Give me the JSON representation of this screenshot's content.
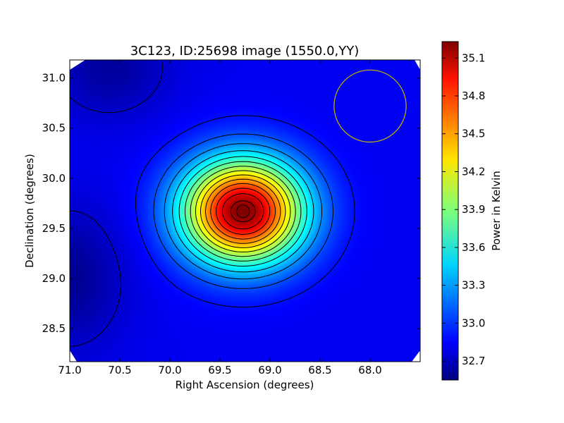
{
  "chart_data": {
    "type": "heatmap",
    "title": "3C123, ID:25698 image (1550.0,YY)",
    "xlabel": "Right Ascension (degrees)",
    "ylabel": "Declination (degrees)",
    "xlim": [
      71.0,
      67.5
    ],
    "ylim": [
      28.17,
      31.18
    ],
    "x_ticks": [
      {
        "value": 71.0,
        "label": "71.0"
      },
      {
        "value": 70.5,
        "label": "70.5"
      },
      {
        "value": 70.0,
        "label": "70.0"
      },
      {
        "value": 69.5,
        "label": "69.5"
      },
      {
        "value": 69.0,
        "label": "69.0"
      },
      {
        "value": 68.5,
        "label": "68.5"
      },
      {
        "value": 68.0,
        "label": "68.0"
      }
    ],
    "y_ticks": [
      {
        "value": 28.5,
        "label": "28.5"
      },
      {
        "value": 29.0,
        "label": "29.0"
      },
      {
        "value": 29.5,
        "label": "29.5"
      },
      {
        "value": 30.0,
        "label": "30.0"
      },
      {
        "value": 30.5,
        "label": "30.5"
      },
      {
        "value": 31.0,
        "label": "31.0"
      }
    ],
    "colorbar": {
      "label": "Power in Kelvin",
      "colormap": "jet",
      "range": [
        32.55,
        35.23
      ],
      "ticks": [
        {
          "value": 32.7,
          "label": "32.7"
        },
        {
          "value": 33.0,
          "label": "33.0"
        },
        {
          "value": 33.3,
          "label": "33.3"
        },
        {
          "value": 33.6,
          "label": "33.6"
        },
        {
          "value": 33.9,
          "label": "33.9"
        },
        {
          "value": 34.2,
          "label": "34.2"
        },
        {
          "value": 34.5,
          "label": "34.5"
        },
        {
          "value": 34.8,
          "label": "34.8"
        },
        {
          "value": 35.1,
          "label": "35.1"
        }
      ]
    },
    "source_peak": {
      "ra": 69.27,
      "dec": 29.67,
      "value": 35.23
    },
    "background_level": 32.85,
    "beam_circle": {
      "ra": 68.0,
      "dec": 30.72,
      "radius_deg": 0.36,
      "color": "#c8b400"
    },
    "grid": false
  }
}
